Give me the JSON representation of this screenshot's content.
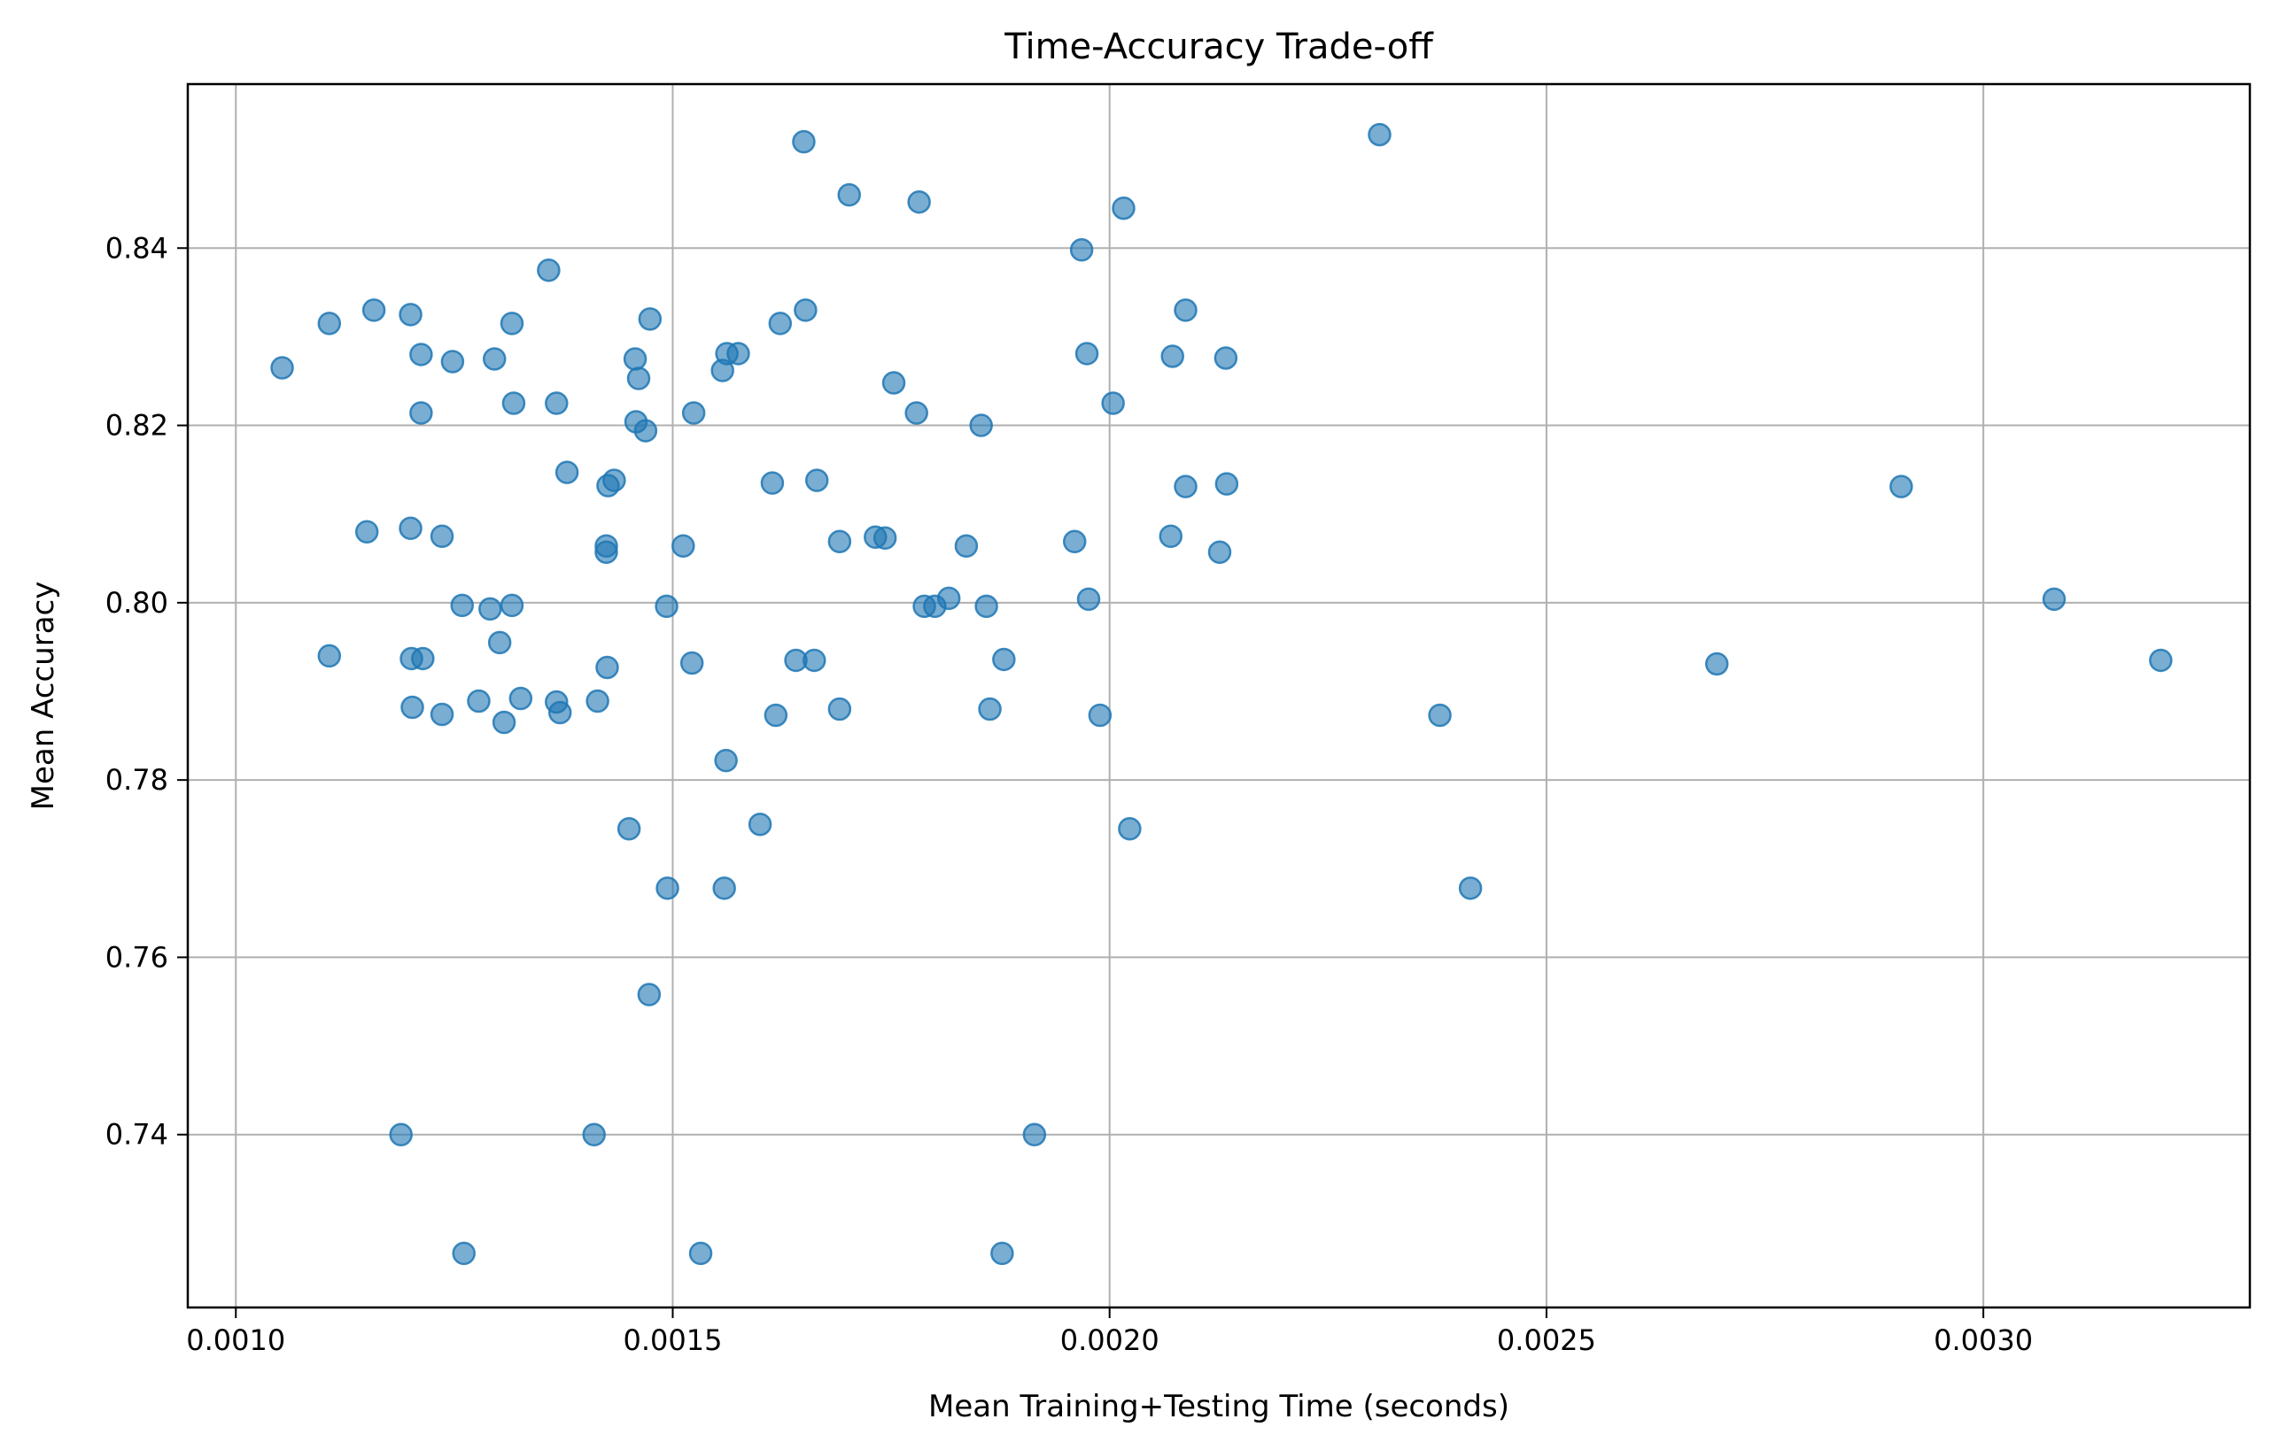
{
  "chart_data": {
    "type": "scatter",
    "title": "Time-Accuracy Trade-off",
    "xlabel": "Mean Training+Testing Time (seconds)",
    "ylabel": "Mean Accuracy",
    "xlim": [
      0.000945,
      0.003305
    ],
    "ylim": [
      0.7205,
      0.8585
    ],
    "xticks": [
      0.001,
      0.0015,
      0.002,
      0.0025,
      0.003
    ],
    "xtick_labels": [
      "0.0010",
      "0.0015",
      "0.0020",
      "0.0025",
      "0.0030"
    ],
    "yticks": [
      0.74,
      0.76,
      0.78,
      0.8,
      0.82,
      0.84
    ],
    "ytick_labels": [
      "0.74",
      "0.76",
      "0.78",
      "0.80",
      "0.82",
      "0.84"
    ],
    "grid": true,
    "marker_color": "#1f77b4",
    "marker_alpha": 0.6,
    "x": [
      0.001053,
      0.001107,
      0.001158,
      0.0012,
      0.001212,
      0.001248,
      0.001296,
      0.001316,
      0.001358,
      0.001474,
      0.001457,
      0.001461,
      0.001524,
      0.001557,
      0.001562,
      0.001575,
      0.001623,
      0.001652,
      0.001212,
      0.001318,
      0.001367,
      0.001458,
      0.001469,
      0.001753,
      0.001779,
      0.001853,
      0.002004,
      0.001974,
      0.002072,
      0.002133,
      0.002087,
      0.00165,
      0.001702,
      0.001782,
      0.001968,
      0.002016,
      0.002309,
      0.001379,
      0.001433,
      0.001426,
      0.001614,
      0.001665,
      0.002087,
      0.002134,
      0.002906,
      0.00115,
      0.0012,
      0.001236,
      0.001424,
      0.001424,
      0.001512,
      0.001691,
      0.001732,
      0.001743,
      0.001836,
      0.00196,
      0.00207,
      0.002126,
      0.001259,
      0.001291,
      0.001316,
      0.001493,
      0.001788,
      0.0018,
      0.001816,
      0.001859,
      0.001976,
      0.003081,
      0.001107,
      0.001201,
      0.001214,
      0.001302,
      0.001425,
      0.001522,
      0.001641,
      0.001662,
      0.001879,
      0.002695,
      0.003203,
      0.001202,
      0.001236,
      0.001278,
      0.001307,
      0.001326,
      0.001371,
      0.001367,
      0.001414,
      0.001618,
      0.001691,
      0.001863,
      0.001989,
      0.002378,
      0.001561,
      0.00145,
      0.0016,
      0.002023,
      0.001494,
      0.001559,
      0.002413,
      0.001473,
      0.001189,
      0.00141,
      0.001914,
      0.001261,
      0.001532,
      0.001877
    ],
    "y": [
      0.8265,
      0.8315,
      0.833,
      0.8325,
      0.828,
      0.8272,
      0.8275,
      0.8315,
      0.8375,
      0.832,
      0.8275,
      0.8253,
      0.8214,
      0.8262,
      0.8281,
      0.8281,
      0.8315,
      0.833,
      0.8214,
      0.8225,
      0.8225,
      0.8204,
      0.8194,
      0.8248,
      0.8214,
      0.82,
      0.8225,
      0.8281,
      0.8278,
      0.8276,
      0.833,
      0.852,
      0.846,
      0.8452,
      0.8398,
      0.8445,
      0.8528,
      0.8147,
      0.8138,
      0.8132,
      0.8135,
      0.8138,
      0.8131,
      0.8134,
      0.8131,
      0.808,
      0.8084,
      0.8075,
      0.8064,
      0.8057,
      0.8064,
      0.8069,
      0.8074,
      0.8073,
      0.8064,
      0.8069,
      0.8075,
      0.8057,
      0.7997,
      0.7993,
      0.7997,
      0.7996,
      0.7996,
      0.7996,
      0.8005,
      0.7996,
      0.8004,
      0.8004,
      0.794,
      0.7937,
      0.7937,
      0.7955,
      0.7927,
      0.7932,
      0.7935,
      0.7935,
      0.7936,
      0.7931,
      0.7935,
      0.7882,
      0.7874,
      0.7889,
      0.7865,
      0.7892,
      0.7876,
      0.7888,
      0.7889,
      0.7873,
      0.788,
      0.788,
      0.7873,
      0.7873,
      0.7822,
      0.7745,
      0.775,
      0.7745,
      0.7678,
      0.7678,
      0.7678,
      0.7558,
      0.74,
      0.74,
      0.74,
      0.7266,
      0.7266,
      0.7266
    ]
  }
}
